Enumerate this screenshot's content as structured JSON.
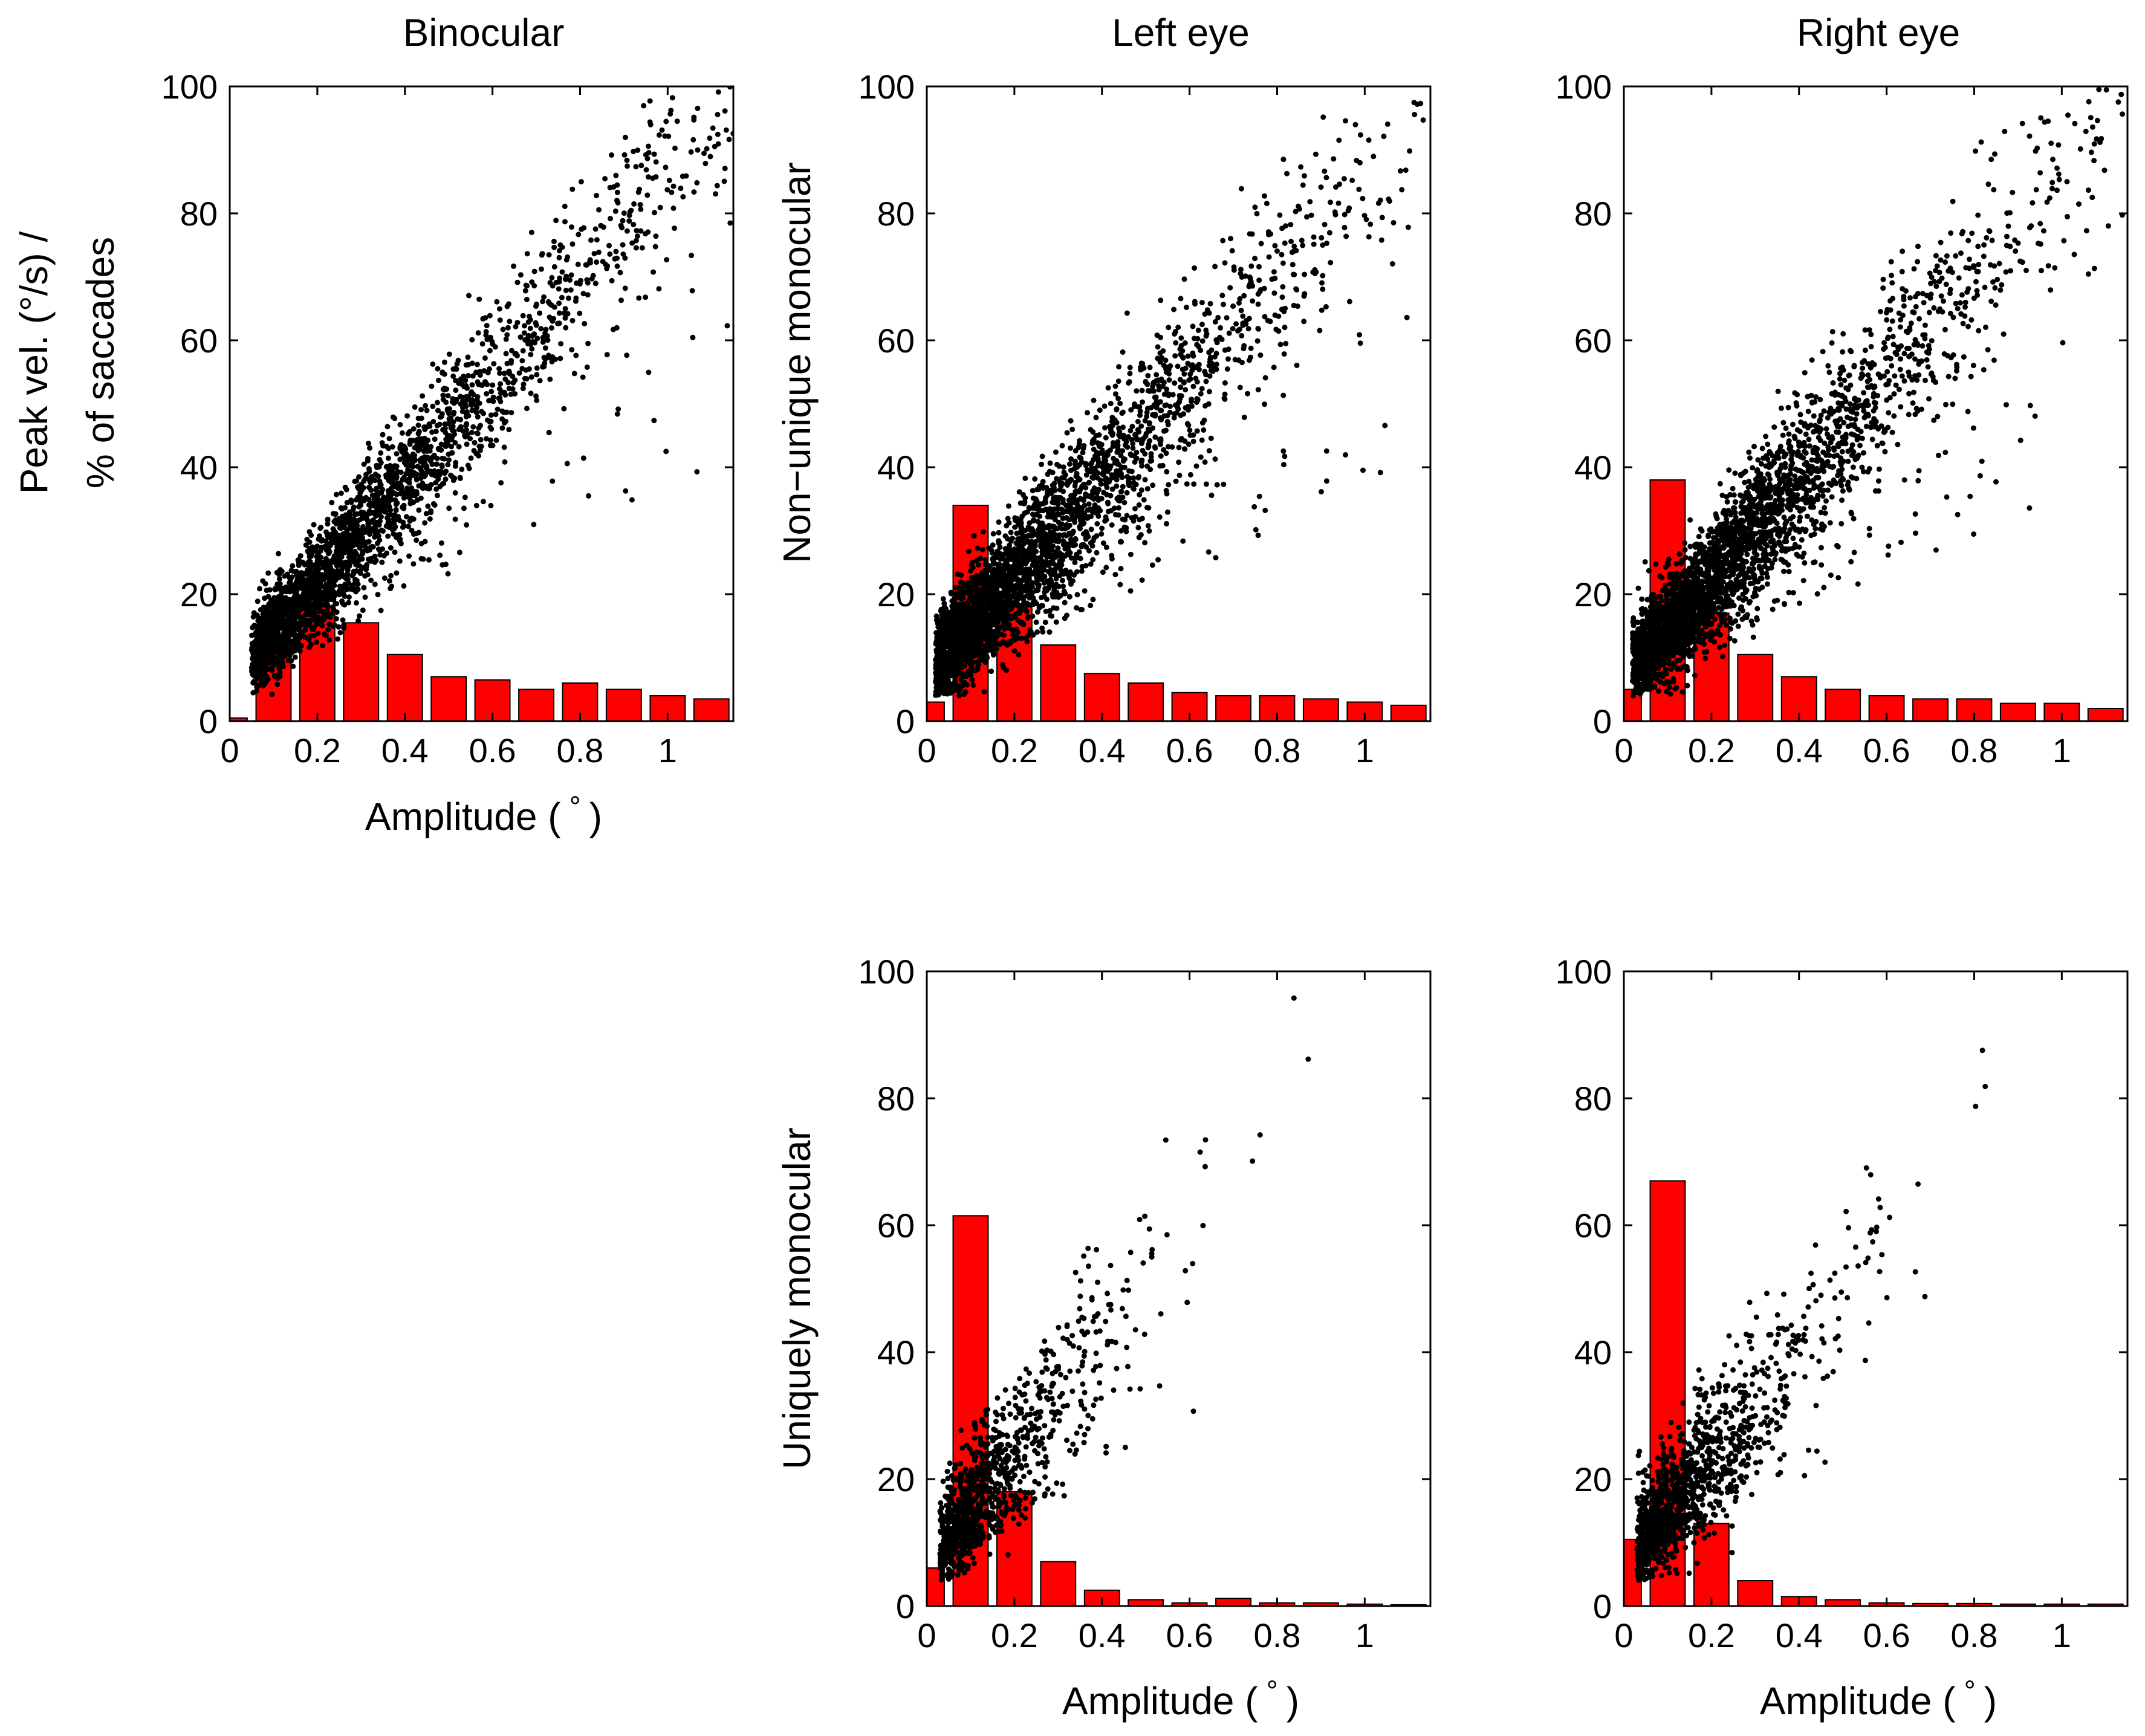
{
  "figure": {
    "column_titles": [
      "Binocular",
      "Left eye",
      "Right eye"
    ],
    "row_labels": {
      "binocular": [
        "Peak vel. (°/s) /",
        "% of saccades"
      ],
      "non_unique": "Non−unique monocular",
      "unique": "Uniquely monocular"
    },
    "xlabel_parts": [
      "Amplitude (",
      "°",
      ")"
    ],
    "colors": {
      "bar": "#ff0000",
      "bar_edge": "#000000",
      "dot": "#000000"
    }
  },
  "chart_data": [
    {
      "id": "binocular",
      "type": "bar+scatter",
      "title": "Binocular",
      "xlabel": "Amplitude (°)",
      "ylabel": "Peak vel. (°/s) / % of saccades",
      "xlim": [
        0,
        1.15
      ],
      "ylim": [
        0,
        100
      ],
      "xticks": [
        "0",
        "0.2",
        "0.4",
        "0.6",
        "0.8",
        "1"
      ],
      "yticks": [
        "0",
        "20",
        "40",
        "60",
        "80",
        "100"
      ],
      "bar_centers": [
        0,
        0.1,
        0.2,
        0.3,
        0.4,
        0.5,
        0.6,
        0.7,
        0.8,
        0.9,
        1.0,
        1.1
      ],
      "bar_values": [
        0.5,
        12,
        18,
        15.5,
        10.5,
        7,
        6.5,
        5,
        6,
        5,
        4,
        3.5
      ],
      "scatter_model": {
        "slope": 80,
        "intercept": 6,
        "x_min": 0.05,
        "x_max": 1.15,
        "n_points": 2600,
        "density": "decay",
        "rate": 3,
        "noise": 5,
        "outlier_fraction": 0.06
      }
    },
    {
      "id": "left-non-unique",
      "type": "bar+scatter",
      "title": "Left eye",
      "xlabel": "",
      "ylabel": "Non−unique monocular",
      "xlim": [
        0,
        1.15
      ],
      "ylim": [
        0,
        100
      ],
      "xticks": [
        "0",
        "0.2",
        "0.4",
        "0.6",
        "0.8",
        "1"
      ],
      "yticks": [
        "0",
        "20",
        "40",
        "60",
        "80",
        "100"
      ],
      "bar_centers": [
        0,
        0.1,
        0.2,
        0.3,
        0.4,
        0.5,
        0.6,
        0.7,
        0.8,
        0.9,
        1.0,
        1.1
      ],
      "bar_values": [
        3,
        34,
        18,
        12,
        7.5,
        6,
        4.5,
        4,
        4,
        3.5,
        3,
        2.5
      ],
      "scatter_model": {
        "slope": 78,
        "intercept": 7,
        "x_min": 0.02,
        "x_max": 1.15,
        "n_points": 3200,
        "density": "decay",
        "rate": 3.5,
        "noise": 6,
        "outlier_fraction": 0.08
      }
    },
    {
      "id": "right-non-unique",
      "type": "bar+scatter",
      "title": "Right eye",
      "xlabel": "",
      "ylabel": "",
      "xlim": [
        0,
        1.15
      ],
      "ylim": [
        0,
        100
      ],
      "xticks": [
        "0",
        "0.2",
        "0.4",
        "0.6",
        "0.8",
        "1"
      ],
      "yticks": [
        "0",
        "20",
        "40",
        "60",
        "80",
        "100"
      ],
      "bar_centers": [
        0,
        0.1,
        0.2,
        0.3,
        0.4,
        0.5,
        0.6,
        0.7,
        0.8,
        0.9,
        1.0,
        1.1
      ],
      "bar_values": [
        5,
        38,
        17,
        10.5,
        7,
        5,
        4,
        3.5,
        3.5,
        2.8,
        2.8,
        2
      ],
      "scatter_model": {
        "slope": 78,
        "intercept": 7,
        "x_min": 0.02,
        "x_max": 1.15,
        "n_points": 3200,
        "density": "decay",
        "rate": 3.5,
        "noise": 6,
        "outlier_fraction": 0.08
      }
    },
    {
      "id": "left-unique",
      "type": "bar+scatter",
      "title": "",
      "xlabel": "Amplitude (°)",
      "ylabel": "Uniquely monocular",
      "xlim": [
        0,
        1.15
      ],
      "ylim": [
        0,
        100
      ],
      "xticks": [
        "0",
        "0.2",
        "0.4",
        "0.6",
        "0.8",
        "1"
      ],
      "yticks": [
        "0",
        "20",
        "40",
        "60",
        "80",
        "100"
      ],
      "bar_centers": [
        0,
        0.1,
        0.2,
        0.3,
        0.4,
        0.5,
        0.6,
        0.7,
        0.8,
        0.9,
        1.0,
        1.1
      ],
      "bar_values": [
        6,
        61.5,
        18,
        7,
        2.5,
        1,
        0.5,
        1.2,
        0.5,
        0.5,
        0.3,
        0.2
      ],
      "scatter_model": {
        "slope": 95,
        "intercept": 6,
        "x_min": 0.03,
        "x_max": 1.15,
        "n_points": 1100,
        "density": "decay",
        "rate": 8,
        "noise": 7,
        "outlier_fraction": 0.15
      }
    },
    {
      "id": "right-unique",
      "type": "bar+scatter",
      "title": "",
      "xlabel": "Amplitude (°)",
      "ylabel": "",
      "xlim": [
        0,
        1.15
      ],
      "ylim": [
        0,
        100
      ],
      "xticks": [
        "0",
        "0.2",
        "0.4",
        "0.6",
        "0.8",
        "1"
      ],
      "yticks": [
        "0",
        "20",
        "40",
        "60",
        "80",
        "100"
      ],
      "bar_centers": [
        0,
        0.1,
        0.2,
        0.3,
        0.4,
        0.5,
        0.6,
        0.7,
        0.8,
        0.9,
        1.0,
        1.1
      ],
      "bar_values": [
        10.5,
        67,
        13,
        4,
        1.5,
        1,
        0.5,
        0.4,
        0.4,
        0.3,
        0.3,
        0.3
      ],
      "scatter_model": {
        "slope": 85,
        "intercept": 7,
        "x_min": 0.03,
        "x_max": 1.15,
        "n_points": 1300,
        "density": "decay",
        "rate": 8,
        "noise": 7,
        "outlier_fraction": 0.15
      }
    }
  ]
}
